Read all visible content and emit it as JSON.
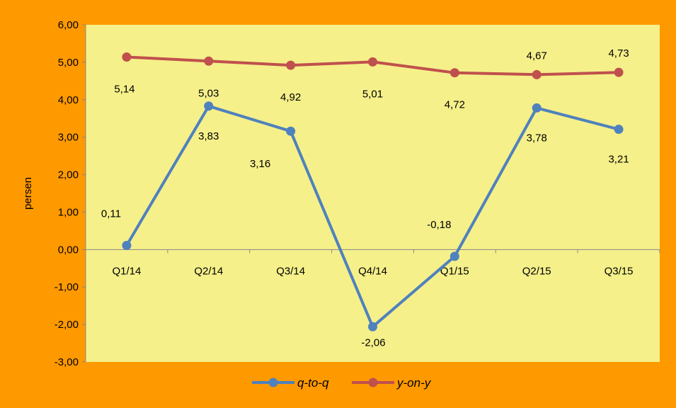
{
  "chart_data": {
    "type": "line",
    "title": "",
    "xlabel": "",
    "ylabel": "persen",
    "categories": [
      "Q1/14",
      "Q2/14",
      "Q3/14",
      "Q4/14",
      "Q1/15",
      "Q2/15",
      "Q3/15"
    ],
    "ylim": [
      -3,
      6
    ],
    "yticks": [
      "-3,00",
      "-2,00",
      "-1,00",
      "0,00",
      "1,00",
      "2,00",
      "3,00",
      "4,00",
      "5,00",
      "6,00"
    ],
    "grid": false,
    "legend_position": "bottom",
    "series": [
      {
        "name": "q-to-q",
        "color": "#4f81bd",
        "values": [
          0.11,
          3.83,
          3.16,
          -2.06,
          -0.18,
          3.78,
          3.21
        ],
        "labels": [
          "0,11",
          "3,83",
          "3,16",
          "-2,06",
          "-0,18",
          "3,78",
          "3,21"
        ]
      },
      {
        "name": "y-on-y",
        "color": "#c0504d",
        "values": [
          5.14,
          5.03,
          4.92,
          5.01,
          4.72,
          4.67,
          4.73
        ],
        "labels": [
          "5,14",
          "5,03",
          "4,92",
          "5,01",
          "4,72",
          "4,67",
          "4,73"
        ]
      }
    ]
  },
  "colors": {
    "background": "#ff9900",
    "plot_area": "#f5f08a"
  }
}
